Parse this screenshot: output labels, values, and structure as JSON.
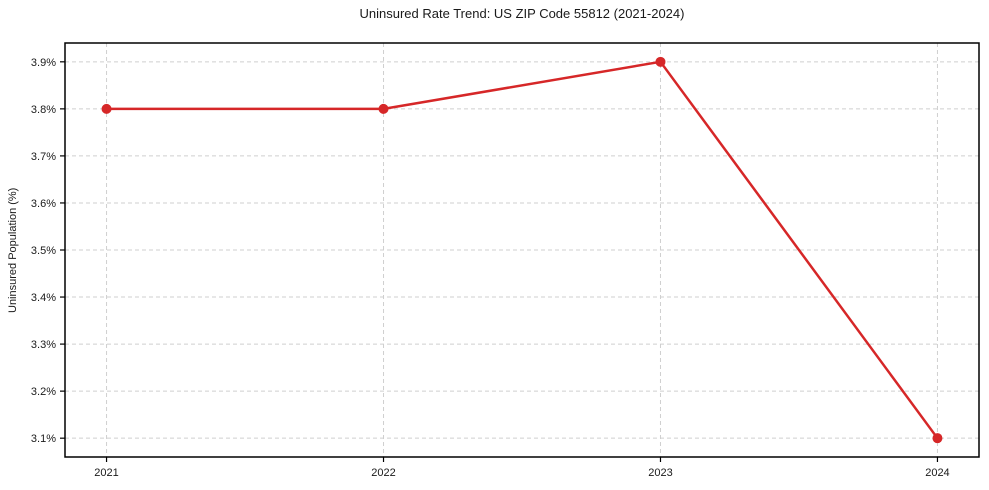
{
  "figure": {
    "background": "#ffffff"
  },
  "chart_data": {
    "type": "line",
    "title": "Uninsured Rate Trend: US ZIP Code 55812 (2021-2024)",
    "xlabel": "",
    "ylabel": "Uninsured Population (%)",
    "x": [
      2021,
      2022,
      2023,
      2024
    ],
    "x_tick_labels": [
      "2021",
      "2022",
      "2023",
      "2024"
    ],
    "series": [
      {
        "name": "Uninsured Population (%)",
        "values": [
          3.8,
          3.8,
          3.9,
          3.1
        ]
      }
    ],
    "y_tick_values": [
      3.1,
      3.2,
      3.3,
      3.4,
      3.5,
      3.6,
      3.7,
      3.8,
      3.9
    ],
    "y_tick_labels": [
      "3.1%",
      "3.2%",
      "3.3%",
      "3.4%",
      "3.5%",
      "3.6%",
      "3.7%",
      "3.8%",
      "3.9%"
    ],
    "xlim": [
      2020.85,
      2024.15
    ],
    "ylim": [
      3.06,
      3.94
    ],
    "grid": true,
    "grid_style": "dashed",
    "legend_position": "none",
    "marker": "circle",
    "colors": {
      "line": "#d62728",
      "marker": "#d62728",
      "grid": "#cfcfcf",
      "axis": "#000000",
      "text": "#1a1a1a",
      "background": "#ffffff"
    }
  }
}
